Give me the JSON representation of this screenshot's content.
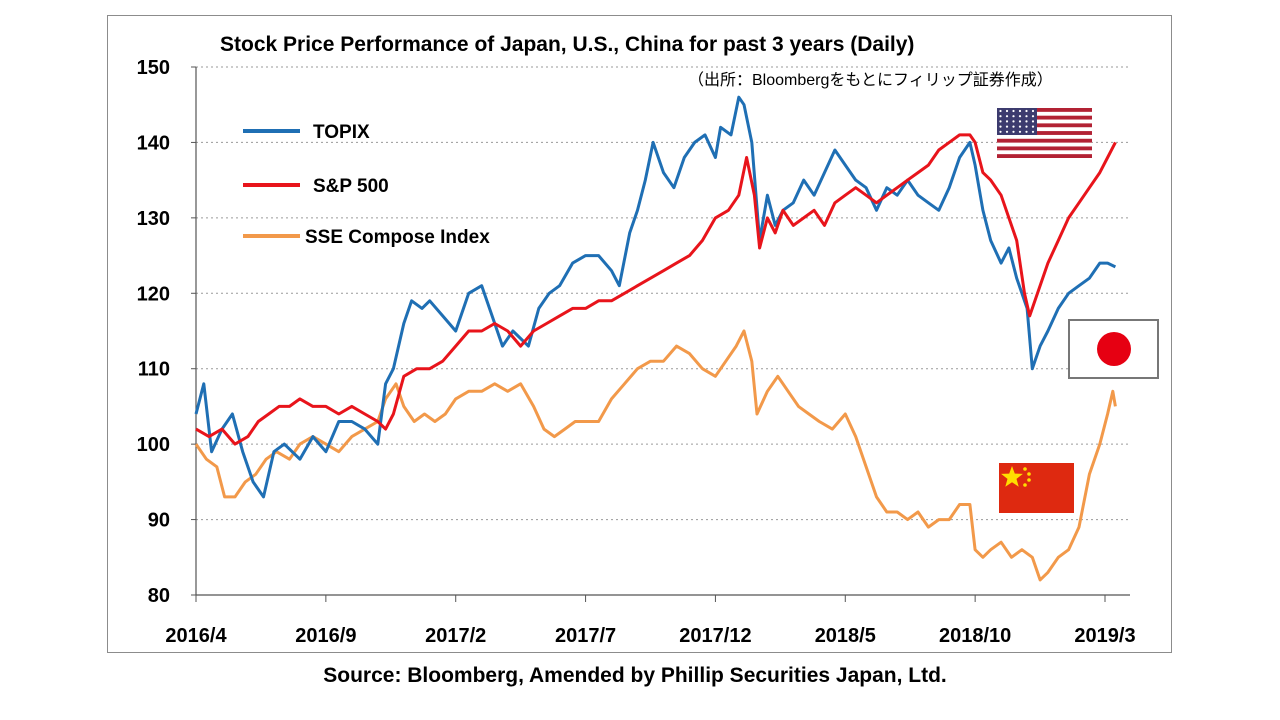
{
  "title": "Stock Price Performance of Japan, U.S., China for past 3 years (Daily)",
  "subtitle": "（出所：Bloombergをもとにフィリップ証券作成）",
  "source": "Source: Bloomberg, Amended by Phillip Securities Japan, Ltd.",
  "chart_data": {
    "type": "line",
    "title": "Stock Price Performance of Japan, U.S., China for past 3 years (Daily)",
    "xlabel": "",
    "ylabel": "",
    "ylim": [
      80,
      150
    ],
    "yticks": [
      80,
      90,
      100,
      110,
      120,
      130,
      140,
      150
    ],
    "xlim": [
      0,
      35.4
    ],
    "xticks": [
      {
        "x": 0,
        "label": "2016/4"
      },
      {
        "x": 5,
        "label": "2016/9"
      },
      {
        "x": 10,
        "label": "2017/2"
      },
      {
        "x": 15,
        "label": "2017/7"
      },
      {
        "x": 20,
        "label": "2017/12"
      },
      {
        "x": 25,
        "label": "2018/5"
      },
      {
        "x": 30,
        "label": "2018/10"
      },
      {
        "x": 35,
        "label": "2019/3"
      }
    ],
    "grid": "horizontal dotted",
    "legend_position": "top-left",
    "series": [
      {
        "name": "TOPIX",
        "color": "#1f6fb4",
        "points": [
          [
            0,
            104
          ],
          [
            0.3,
            108
          ],
          [
            0.6,
            99
          ],
          [
            1,
            102
          ],
          [
            1.4,
            104
          ],
          [
            1.8,
            99
          ],
          [
            2.2,
            95
          ],
          [
            2.6,
            93
          ],
          [
            3,
            99
          ],
          [
            3.4,
            100
          ],
          [
            4,
            98
          ],
          [
            4.5,
            101
          ],
          [
            5,
            99
          ],
          [
            5.5,
            103
          ],
          [
            6,
            103
          ],
          [
            6.5,
            102
          ],
          [
            7,
            100
          ],
          [
            7.3,
            108
          ],
          [
            7.6,
            110
          ],
          [
            8,
            116
          ],
          [
            8.3,
            119
          ],
          [
            8.7,
            118
          ],
          [
            9,
            119
          ],
          [
            9.5,
            117
          ],
          [
            10,
            115
          ],
          [
            10.5,
            120
          ],
          [
            11,
            121
          ],
          [
            11.4,
            117
          ],
          [
            11.8,
            113
          ],
          [
            12.2,
            115
          ],
          [
            12.5,
            114
          ],
          [
            12.8,
            113
          ],
          [
            13.2,
            118
          ],
          [
            13.6,
            120
          ],
          [
            14,
            121
          ],
          [
            14.5,
            124
          ],
          [
            15,
            125
          ],
          [
            15.5,
            125
          ],
          [
            16,
            123
          ],
          [
            16.3,
            121
          ],
          [
            16.7,
            128
          ],
          [
            17,
            131
          ],
          [
            17.3,
            135
          ],
          [
            17.6,
            140
          ],
          [
            18,
            136
          ],
          [
            18.4,
            134
          ],
          [
            18.8,
            138
          ],
          [
            19.2,
            140
          ],
          [
            19.6,
            141
          ],
          [
            20,
            138
          ],
          [
            20.2,
            142
          ],
          [
            20.6,
            141
          ],
          [
            20.9,
            146
          ],
          [
            21.1,
            145
          ],
          [
            21.4,
            140
          ],
          [
            21.7,
            127
          ],
          [
            22,
            133
          ],
          [
            22.3,
            129
          ],
          [
            22.6,
            131
          ],
          [
            23,
            132
          ],
          [
            23.4,
            135
          ],
          [
            23.8,
            133
          ],
          [
            24.2,
            136
          ],
          [
            24.6,
            139
          ],
          [
            25,
            137
          ],
          [
            25.4,
            135
          ],
          [
            25.8,
            134
          ],
          [
            26.2,
            131
          ],
          [
            26.6,
            134
          ],
          [
            27,
            133
          ],
          [
            27.4,
            135
          ],
          [
            27.8,
            133
          ],
          [
            28.2,
            132
          ],
          [
            28.6,
            131
          ],
          [
            29,
            134
          ],
          [
            29.4,
            138
          ],
          [
            29.8,
            140
          ],
          [
            30,
            137
          ],
          [
            30.3,
            131
          ],
          [
            30.6,
            127
          ],
          [
            31,
            124
          ],
          [
            31.3,
            126
          ],
          [
            31.6,
            122
          ],
          [
            32,
            118
          ],
          [
            32.2,
            110
          ],
          [
            32.5,
            113
          ],
          [
            32.8,
            115
          ],
          [
            33.2,
            118
          ],
          [
            33.6,
            120
          ],
          [
            34,
            121
          ],
          [
            34.4,
            122
          ],
          [
            34.8,
            124
          ],
          [
            35.1,
            124
          ],
          [
            35.4,
            123.5
          ]
        ]
      },
      {
        "name": "S&P 500",
        "color": "#e8141b",
        "points": [
          [
            0,
            102
          ],
          [
            0.5,
            101
          ],
          [
            1,
            102
          ],
          [
            1.5,
            100
          ],
          [
            2,
            101
          ],
          [
            2.4,
            103
          ],
          [
            2.8,
            104
          ],
          [
            3.2,
            105
          ],
          [
            3.6,
            105
          ],
          [
            4,
            106
          ],
          [
            4.5,
            105
          ],
          [
            5,
            105
          ],
          [
            5.5,
            104
          ],
          [
            6,
            105
          ],
          [
            6.5,
            104
          ],
          [
            7,
            103
          ],
          [
            7.3,
            102
          ],
          [
            7.6,
            104
          ],
          [
            8,
            109
          ],
          [
            8.5,
            110
          ],
          [
            9,
            110
          ],
          [
            9.5,
            111
          ],
          [
            10,
            113
          ],
          [
            10.5,
            115
          ],
          [
            11,
            115
          ],
          [
            11.5,
            116
          ],
          [
            12,
            115
          ],
          [
            12.5,
            113
          ],
          [
            13,
            115
          ],
          [
            13.5,
            116
          ],
          [
            14,
            117
          ],
          [
            14.5,
            118
          ],
          [
            15,
            118
          ],
          [
            15.5,
            119
          ],
          [
            16,
            119
          ],
          [
            16.5,
            120
          ],
          [
            17,
            121
          ],
          [
            17.5,
            122
          ],
          [
            18,
            123
          ],
          [
            18.5,
            124
          ],
          [
            19,
            125
          ],
          [
            19.5,
            127
          ],
          [
            20,
            130
          ],
          [
            20.5,
            131
          ],
          [
            20.9,
            133
          ],
          [
            21.2,
            138
          ],
          [
            21.5,
            133
          ],
          [
            21.7,
            126
          ],
          [
            22,
            130
          ],
          [
            22.3,
            128
          ],
          [
            22.6,
            131
          ],
          [
            23,
            129
          ],
          [
            23.4,
            130
          ],
          [
            23.8,
            131
          ],
          [
            24.2,
            129
          ],
          [
            24.6,
            132
          ],
          [
            25,
            133
          ],
          [
            25.4,
            134
          ],
          [
            25.8,
            133
          ],
          [
            26.2,
            132
          ],
          [
            26.6,
            133
          ],
          [
            27,
            134
          ],
          [
            27.4,
            135
          ],
          [
            27.8,
            136
          ],
          [
            28.2,
            137
          ],
          [
            28.6,
            139
          ],
          [
            29,
            140
          ],
          [
            29.4,
            141
          ],
          [
            29.8,
            141
          ],
          [
            30,
            140
          ],
          [
            30.3,
            136
          ],
          [
            30.6,
            135
          ],
          [
            31,
            133
          ],
          [
            31.3,
            130
          ],
          [
            31.6,
            127
          ],
          [
            31.9,
            120
          ],
          [
            32.1,
            117
          ],
          [
            32.4,
            120
          ],
          [
            32.8,
            124
          ],
          [
            33.2,
            127
          ],
          [
            33.6,
            130
          ],
          [
            34,
            132
          ],
          [
            34.4,
            134
          ],
          [
            34.8,
            136
          ],
          [
            35.1,
            138
          ],
          [
            35.4,
            140
          ]
        ]
      },
      {
        "name": "SSE Compose Index",
        "color": "#f2994a",
        "points": [
          [
            0,
            100
          ],
          [
            0.4,
            98
          ],
          [
            0.8,
            97
          ],
          [
            1.1,
            93
          ],
          [
            1.5,
            93
          ],
          [
            1.9,
            95
          ],
          [
            2.3,
            96
          ],
          [
            2.7,
            98
          ],
          [
            3.1,
            99
          ],
          [
            3.6,
            98
          ],
          [
            4,
            100
          ],
          [
            4.5,
            101
          ],
          [
            5,
            100
          ],
          [
            5.5,
            99
          ],
          [
            6,
            101
          ],
          [
            6.5,
            102
          ],
          [
            7,
            103
          ],
          [
            7.3,
            106
          ],
          [
            7.7,
            108
          ],
          [
            8,
            105
          ],
          [
            8.4,
            103
          ],
          [
            8.8,
            104
          ],
          [
            9.2,
            103
          ],
          [
            9.6,
            104
          ],
          [
            10,
            106
          ],
          [
            10.5,
            107
          ],
          [
            11,
            107
          ],
          [
            11.5,
            108
          ],
          [
            12,
            107
          ],
          [
            12.5,
            108
          ],
          [
            13,
            105
          ],
          [
            13.4,
            102
          ],
          [
            13.8,
            101
          ],
          [
            14.2,
            102
          ],
          [
            14.6,
            103
          ],
          [
            15,
            103
          ],
          [
            15.5,
            103
          ],
          [
            16,
            106
          ],
          [
            16.5,
            108
          ],
          [
            17,
            110
          ],
          [
            17.5,
            111
          ],
          [
            18,
            111
          ],
          [
            18.5,
            113
          ],
          [
            19,
            112
          ],
          [
            19.5,
            110
          ],
          [
            20,
            109
          ],
          [
            20.4,
            111
          ],
          [
            20.8,
            113
          ],
          [
            21.1,
            115
          ],
          [
            21.4,
            111
          ],
          [
            21.6,
            104
          ],
          [
            22,
            107
          ],
          [
            22.4,
            109
          ],
          [
            22.8,
            107
          ],
          [
            23.2,
            105
          ],
          [
            23.6,
            104
          ],
          [
            24,
            103
          ],
          [
            24.5,
            102
          ],
          [
            25,
            104
          ],
          [
            25.4,
            101
          ],
          [
            25.8,
            97
          ],
          [
            26.2,
            93
          ],
          [
            26.6,
            91
          ],
          [
            27,
            91
          ],
          [
            27.4,
            90
          ],
          [
            27.8,
            91
          ],
          [
            28.2,
            89
          ],
          [
            28.6,
            90
          ],
          [
            29,
            90
          ],
          [
            29.4,
            92
          ],
          [
            29.8,
            92
          ],
          [
            30,
            86
          ],
          [
            30.3,
            85
          ],
          [
            30.6,
            86
          ],
          [
            31,
            87
          ],
          [
            31.4,
            85
          ],
          [
            31.8,
            86
          ],
          [
            32.2,
            85
          ],
          [
            32.5,
            82
          ],
          [
            32.8,
            83
          ],
          [
            33.2,
            85
          ],
          [
            33.6,
            86
          ],
          [
            34,
            89
          ],
          [
            34.4,
            96
          ],
          [
            34.8,
            100
          ],
          [
            35.1,
            104
          ],
          [
            35.3,
            107
          ],
          [
            35.4,
            105
          ]
        ]
      }
    ]
  },
  "flags": {
    "us": "us-flag",
    "japan": "japan-flag",
    "china": "china-flag"
  }
}
